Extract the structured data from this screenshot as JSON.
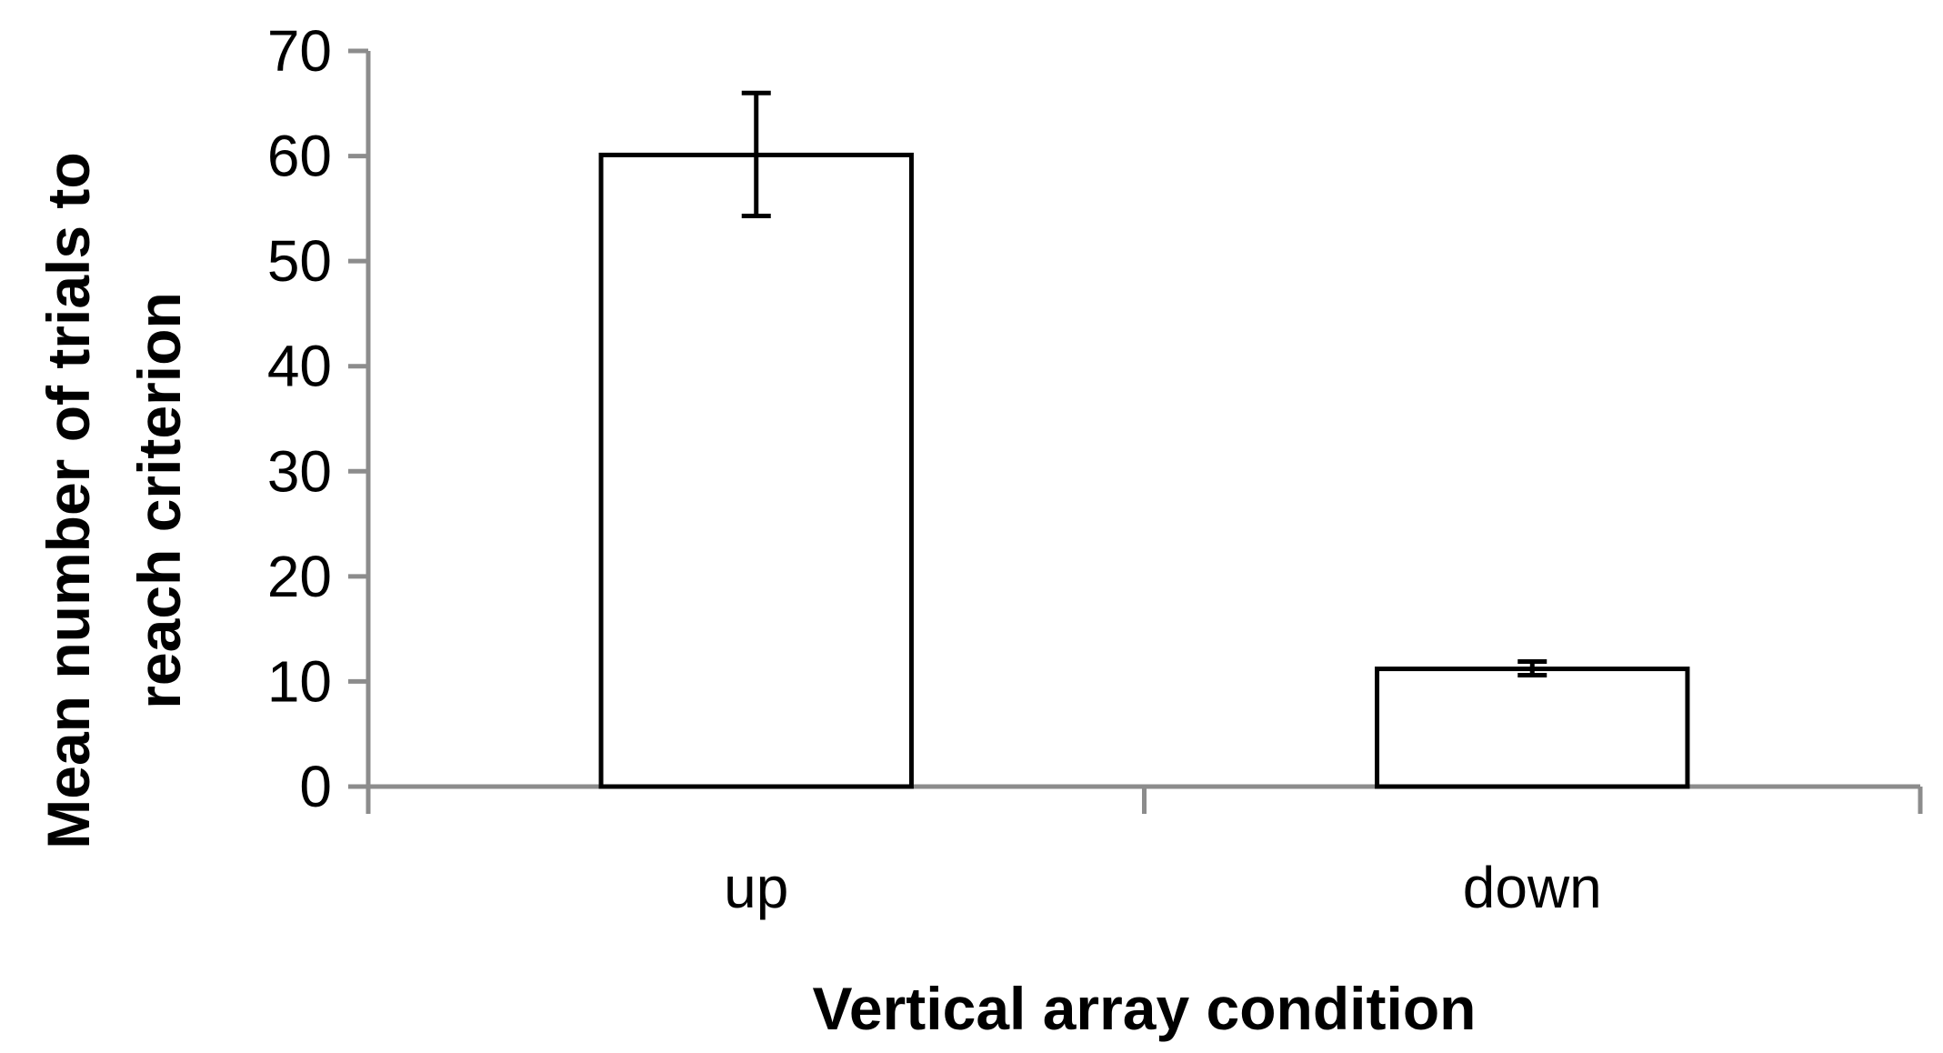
{
  "chart_data": {
    "type": "bar",
    "categories": [
      "up",
      "down"
    ],
    "values": [
      60.1,
      11.2
    ],
    "error_bars": [
      {
        "low": 54.3,
        "high": 66.0
      },
      {
        "low": 10.6,
        "high": 11.9
      }
    ],
    "title": "",
    "xlabel": "Vertical array condition",
    "ylabel_lines": [
      "Mean number of trials to",
      "reach criterion"
    ],
    "ylim": [
      0,
      70
    ],
    "yticks": [
      "0",
      "10",
      "20",
      "30",
      "40",
      "50",
      "60",
      "70"
    ],
    "grid": false,
    "legend": "none",
    "colors": {
      "bar_fill": "#ffffff",
      "bar_stroke": "#000000",
      "axis": "#8c8c8c",
      "error_bar": "#000000"
    }
  }
}
